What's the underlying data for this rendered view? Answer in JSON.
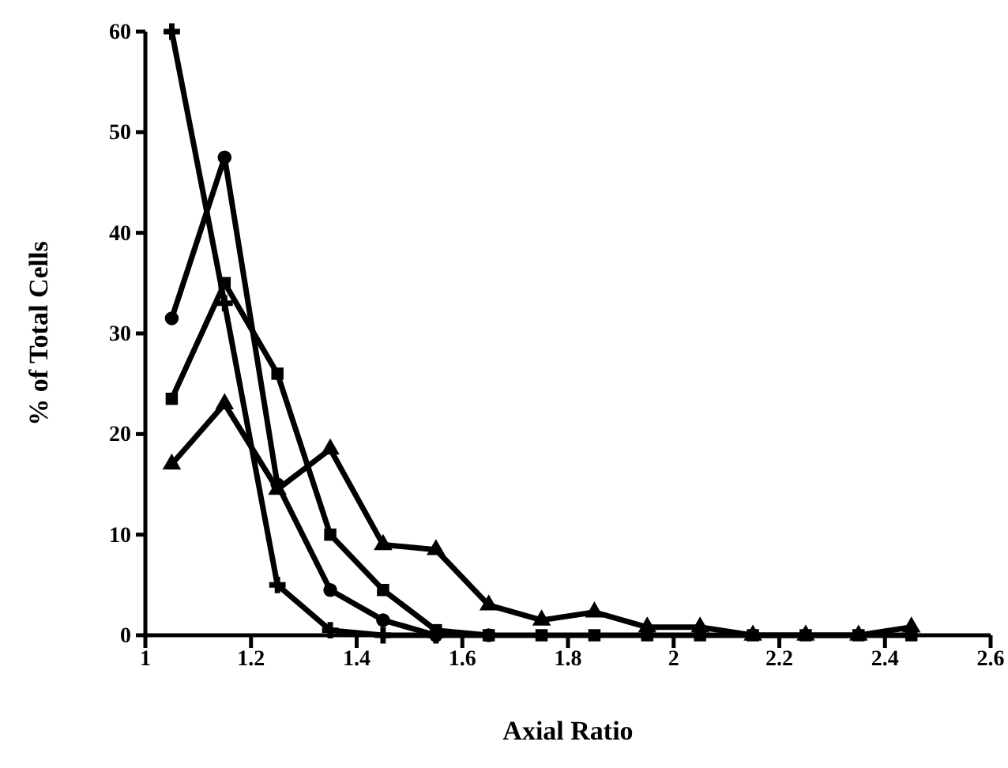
{
  "chart_data": {
    "type": "line",
    "xlabel": "Axial Ratio",
    "ylabel": "% of Total Cells",
    "xlim": [
      1,
      2.6
    ],
    "xticks": [
      1,
      1.2,
      1.4,
      1.6,
      1.8,
      2,
      2.2,
      2.4,
      2.6
    ],
    "ylim": [
      0,
      60
    ],
    "yticks": [
      0,
      10,
      20,
      30,
      40,
      50,
      60
    ],
    "grid": false,
    "line_style": "solid",
    "series": [
      {
        "color": "#000000",
        "marker": "cross",
        "x": [
          1.05,
          1.15,
          1.25,
          1.35,
          1.45,
          1.55
        ],
        "values": [
          60,
          33,
          5,
          0.5,
          0,
          0
        ]
      },
      {
        "color": "#000000",
        "marker": "circle",
        "x": [
          1.05,
          1.15,
          1.25,
          1.35,
          1.45,
          1.55,
          1.65
        ],
        "values": [
          31.5,
          47.5,
          15,
          4.5,
          1.5,
          0,
          0
        ]
      },
      {
        "color": "#000000",
        "marker": "square",
        "x": [
          1.05,
          1.15,
          1.25,
          1.35,
          1.45,
          1.55,
          1.65,
          1.75,
          1.85,
          1.95,
          2.05,
          2.15,
          2.25,
          2.35,
          2.45
        ],
        "values": [
          23.5,
          35,
          26,
          10,
          4.5,
          0.5,
          0,
          0,
          0,
          0,
          0,
          0,
          0,
          0,
          0
        ]
      },
      {
        "color": "#000000",
        "marker": "triangle",
        "x": [
          1.05,
          1.15,
          1.25,
          1.35,
          1.45,
          1.55,
          1.65,
          1.75,
          1.85,
          1.95,
          2.05,
          2.15,
          2.25,
          2.35,
          2.45
        ],
        "values": [
          17,
          23,
          14.5,
          18.5,
          9,
          8.5,
          3,
          1.5,
          2.3,
          0.8,
          0.8,
          0,
          0,
          0,
          0.8
        ]
      }
    ]
  }
}
